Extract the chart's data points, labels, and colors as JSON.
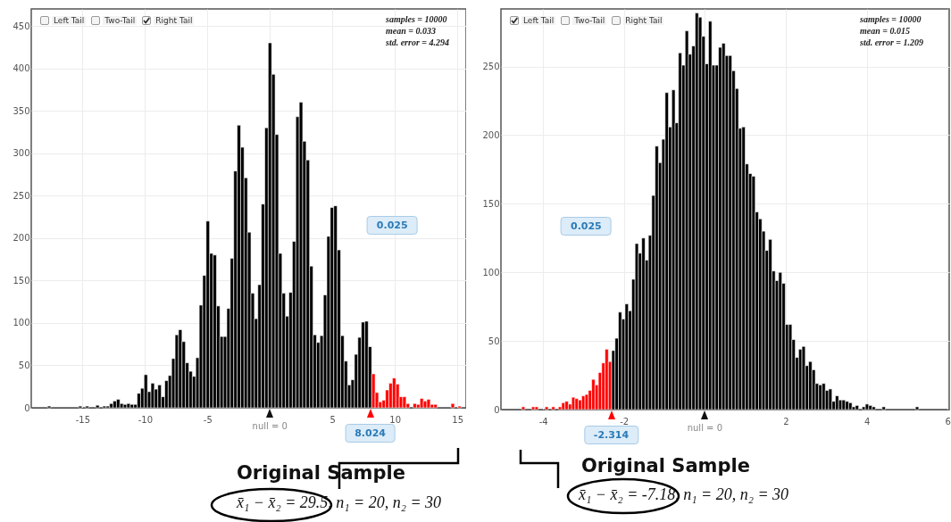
{
  "chart_data": [
    {
      "type": "histogram",
      "grid": true,
      "bins": [
        -17.802,
        -17.526,
        -17.25,
        -16.974,
        -16.698,
        -16.422,
        -16.146,
        -15.87,
        -15.594,
        -15.318,
        -15.042,
        -14.766,
        -14.49,
        -14.214,
        -13.938,
        -13.662,
        -13.386,
        -13.11,
        -12.834,
        -12.558,
        -12.282,
        -12.006,
        -11.73,
        -11.454,
        -11.178,
        -10.902,
        -10.626,
        -10.35,
        -10.074,
        -9.798,
        -9.522,
        -9.246,
        -8.97,
        -8.694,
        -8.418,
        -8.142,
        -7.866,
        -7.59,
        -7.314,
        -7.038,
        -6.762,
        -6.486,
        -6.21,
        -5.934,
        -5.658,
        -5.382,
        -5.106,
        -4.83,
        -4.554,
        -4.278,
        -4.002,
        -3.726,
        -3.45,
        -3.174,
        -2.898,
        -2.622,
        -2.346,
        -2.07,
        -1.794,
        -1.518,
        -1.242,
        -0.966,
        -0.69,
        -0.414,
        -0.138,
        0.138,
        0.414,
        0.69,
        0.966,
        1.242,
        1.518,
        1.794,
        2.07,
        2.346,
        2.622,
        2.898,
        3.174,
        3.45,
        3.726,
        4.002,
        4.278,
        4.554,
        4.83,
        5.106,
        5.382,
        5.658,
        5.934,
        6.21,
        6.486,
        6.762,
        7.038,
        7.314,
        7.59,
        7.866,
        8.142,
        8.418,
        8.694,
        8.97,
        9.246,
        9.522,
        9.798,
        10.074,
        10.35,
        10.626,
        10.902,
        11.178,
        11.454,
        11.73,
        12.006,
        12.282,
        12.558,
        12.834,
        13.11,
        13.386,
        13.662,
        13.938,
        14.214,
        14.49,
        14.766,
        15.042,
        15.318
      ],
      "values": [
        2,
        0,
        0,
        0,
        0,
        0,
        0,
        0,
        0,
        2,
        0,
        2,
        0,
        0,
        3,
        0,
        2,
        2,
        5,
        8,
        10,
        5,
        4,
        5,
        4,
        4,
        17,
        23,
        39,
        19,
        29,
        22,
        27,
        13,
        32,
        38,
        58,
        86,
        92,
        78,
        53,
        43,
        37,
        59,
        121,
        156,
        220,
        182,
        180,
        120,
        84,
        84,
        117,
        176,
        279,
        333,
        307,
        271,
        207,
        135,
        105,
        145,
        240,
        330,
        430,
        393,
        322,
        182,
        135,
        108,
        136,
        196,
        343,
        360,
        314,
        292,
        167,
        86,
        77,
        85,
        133,
        202,
        236,
        238,
        186,
        85,
        55,
        27,
        33,
        63,
        83,
        101,
        102,
        72,
        40,
        18,
        7,
        9,
        21,
        29,
        35,
        28,
        13,
        13,
        5,
        0,
        5,
        4,
        11,
        8,
        10,
        4,
        4,
        0,
        0,
        0,
        0,
        5,
        0,
        2
      ],
      "colors": [
        "#000000",
        "#000000",
        "#000000",
        "#000000",
        "#000000",
        "#000000",
        "#000000",
        "#000000",
        "#000000",
        "#000000",
        "#000000",
        "#000000",
        "#000000",
        "#000000",
        "#000000",
        "#000000",
        "#000000",
        "#000000",
        "#000000",
        "#000000",
        "#000000",
        "#000000",
        "#000000",
        "#000000",
        "#000000",
        "#000000",
        "#000000",
        "#000000",
        "#000000",
        "#000000",
        "#000000",
        "#000000",
        "#000000",
        "#000000",
        "#000000",
        "#000000",
        "#000000",
        "#000000",
        "#000000",
        "#000000",
        "#000000",
        "#000000",
        "#000000",
        "#000000",
        "#000000",
        "#000000",
        "#000000",
        "#000000",
        "#000000",
        "#000000",
        "#000000",
        "#000000",
        "#000000",
        "#000000",
        "#000000",
        "#000000",
        "#000000",
        "#000000",
        "#000000",
        "#000000",
        "#000000",
        "#000000",
        "#000000",
        "#000000",
        "#000000",
        "#000000",
        "#000000",
        "#000000",
        "#000000",
        "#000000",
        "#000000",
        "#000000",
        "#000000",
        "#000000",
        "#000000",
        "#000000",
        "#000000",
        "#000000",
        "#000000",
        "#000000",
        "#000000",
        "#000000",
        "#000000",
        "#000000",
        "#000000",
        "#000000",
        "#000000",
        "#000000",
        "#000000",
        "#000000",
        "#000000",
        "#000000",
        "#000000",
        "#000000",
        "#ff0000",
        "#ff0000",
        "#ff0000",
        "#ff0000",
        "#ff0000",
        "#ff0000",
        "#ff0000",
        "#ff0000",
        "#ff0000",
        "#ff0000",
        "#ff0000",
        "#ff0000",
        "#ff0000",
        "#ff0000",
        "#ff0000",
        "#ff0000",
        "#ff0000",
        "#ff0000",
        "#ff0000",
        "#ff0000",
        "#ff0000",
        "#ff0000",
        "#ff0000",
        "#ff0000",
        "#ff0000",
        "#ff0000"
      ],
      "xlim": [
        -19.1,
        15.7
      ],
      "xticks": [
        -15,
        -10,
        -5,
        {
          "value": 0,
          "label": null
        },
        5,
        10,
        15
      ],
      "ylim": [
        0,
        470
      ],
      "yticks": [
        0,
        50,
        100,
        150,
        200,
        250,
        300,
        350,
        400,
        450
      ],
      "annotations": [
        "Left Tail",
        "Two-Tail",
        "Right Tail",
        "samples = 10000",
        "mean = 0.033",
        "std. error = 4.294",
        "0.025",
        {
          "text": "8.024",
          "x": 8.024,
          "y": 0
        },
        {
          "text": "null = 0",
          "x": 0,
          "y": 0
        },
        "Original Sample",
        "x̄₁ − x̄₂ =  29.5, n₁ = 20, n₂ = 30"
      ]
    },
    {
      "type": "histogram",
      "grid": true,
      "bins": [
        -4.53,
        -4.4475,
        -4.365,
        -4.2825,
        -4.2,
        -4.1175,
        -4.035,
        -3.9525,
        -3.87,
        -3.7875,
        -3.705,
        -3.6225,
        -3.54,
        -3.4575,
        -3.375,
        -3.2925,
        -3.21,
        -3.1275,
        -3.045,
        -2.9625,
        -2.88,
        -2.7975,
        -2.715,
        -2.6325,
        -2.55,
        -2.4675,
        -2.385,
        -2.3025,
        -2.22,
        -2.1375,
        -2.055,
        -1.9725,
        -1.89,
        -1.8075,
        -1.725,
        -1.6425,
        -1.56,
        -1.4775,
        -1.395,
        -1.3125,
        -1.23,
        -1.1475,
        -1.065,
        -0.9825,
        -0.9,
        -0.8175,
        -0.735,
        -0.6525,
        -0.57,
        -0.4875,
        -0.405,
        -0.3225,
        -0.24,
        -0.1575,
        -0.075,
        0.0075,
        0.09,
        0.1725,
        0.255,
        0.3375,
        0.42,
        0.5025,
        0.585,
        0.6675,
        0.75,
        0.8325,
        0.915,
        0.9975,
        1.08,
        1.1625,
        1.245,
        1.3275,
        1.41,
        1.4925,
        1.575,
        1.6575,
        1.74,
        1.8225,
        1.905,
        1.9875,
        2.07,
        2.1525,
        2.235,
        2.3175,
        2.4,
        2.4825,
        2.565,
        2.6475,
        2.73,
        2.8125,
        2.895,
        2.9775,
        3.06,
        3.1425,
        3.225,
        3.3075,
        3.39,
        3.4725,
        3.555,
        3.6375,
        3.72,
        3.8025,
        3.885,
        3.9675,
        4.05,
        4.1325,
        4.215,
        4.2975,
        4.38,
        4.4625,
        4.545,
        4.6275,
        4.71,
        4.7925,
        4.875,
        4.9575,
        5.04,
        5.1225,
        5.205,
        5.2875
      ],
      "values": [
        2,
        0,
        0,
        2,
        2,
        0,
        0,
        2,
        0,
        2,
        0,
        2,
        5,
        6,
        4,
        9,
        8,
        7,
        10,
        11,
        14,
        22,
        18,
        27,
        34,
        44,
        35,
        43,
        52,
        71,
        66,
        77,
        72,
        95,
        121,
        114,
        125,
        109,
        127,
        156,
        192,
        180,
        197,
        231,
        206,
        233,
        209,
        260,
        251,
        276,
        259,
        265,
        289,
        286,
        272,
        252,
        283,
        251,
        251,
        264,
        267,
        258,
        258,
        247,
        234,
        205,
        206,
        179,
        172,
        170,
        144,
        139,
        130,
        116,
        124,
        101,
        94,
        100,
        92,
        62,
        62,
        51,
        38,
        44,
        46,
        32,
        35,
        29,
        19,
        18,
        19,
        14,
        15,
        6,
        10,
        7,
        7,
        6,
        5,
        2,
        3,
        0,
        2,
        4,
        3,
        2,
        0,
        0,
        2,
        0,
        0,
        0,
        0,
        0,
        0,
        0,
        0,
        0,
        2
      ],
      "colors": [
        "#ff0000",
        "#ff0000",
        "#ff0000",
        "#ff0000",
        "#ff0000",
        "#ff0000",
        "#ff0000",
        "#ff0000",
        "#ff0000",
        "#ff0000",
        "#ff0000",
        "#ff0000",
        "#ff0000",
        "#ff0000",
        "#ff0000",
        "#ff0000",
        "#ff0000",
        "#ff0000",
        "#ff0000",
        "#ff0000",
        "#ff0000",
        "#ff0000",
        "#ff0000",
        "#ff0000",
        "#ff0000",
        "#ff0000",
        "#ff0000",
        "#000000",
        "#000000",
        "#000000",
        "#000000",
        "#000000",
        "#000000",
        "#000000",
        "#000000",
        "#000000",
        "#000000",
        "#000000",
        "#000000",
        "#000000",
        "#000000",
        "#000000",
        "#000000",
        "#000000",
        "#000000",
        "#000000",
        "#000000",
        "#000000",
        "#000000",
        "#000000",
        "#000000",
        "#000000",
        "#000000",
        "#000000",
        "#000000",
        "#000000",
        "#000000",
        "#000000",
        "#000000",
        "#000000",
        "#000000",
        "#000000",
        "#000000",
        "#000000",
        "#000000",
        "#000000",
        "#000000",
        "#000000",
        "#000000",
        "#000000",
        "#000000",
        "#000000",
        "#000000",
        "#000000",
        "#000000",
        "#000000",
        "#000000",
        "#000000",
        "#000000",
        "#000000",
        "#000000",
        "#000000",
        "#000000",
        "#000000",
        "#000000",
        "#000000",
        "#000000",
        "#000000",
        "#000000",
        "#000000",
        "#000000",
        "#000000",
        "#000000",
        "#000000",
        "#000000",
        "#000000",
        "#000000",
        "#000000",
        "#000000",
        "#000000",
        "#000000",
        "#000000",
        "#000000",
        "#000000",
        "#000000",
        "#000000",
        "#000000",
        "#000000",
        "#000000",
        "#000000",
        "#000000",
        "#000000",
        "#000000",
        "#000000",
        "#000000",
        "#000000",
        "#000000",
        "#000000",
        "#000000"
      ],
      "xlim": [
        -5.04,
        6.04
      ],
      "xticks": [
        -4,
        -2,
        {
          "value": 0,
          "label": null
        },
        2,
        4,
        6
      ],
      "ylim": [
        0,
        292
      ],
      "yticks": [
        0,
        50,
        100,
        150,
        200,
        250
      ],
      "annotations": [
        "Left Tail",
        "Two-Tail",
        "Right Tail",
        "samples = 10000",
        "mean = 0.015",
        "std. error = 1.209",
        "0.025",
        {
          "text": "-2.314",
          "x": -2.314,
          "y": 0
        },
        {
          "text": "null = 0",
          "x": 0,
          "y": 0
        },
        "Original Sample",
        "x̄₁ − x̄₂ = -7.18, n₁ = 20, n₂ = 30"
      ]
    }
  ]
}
